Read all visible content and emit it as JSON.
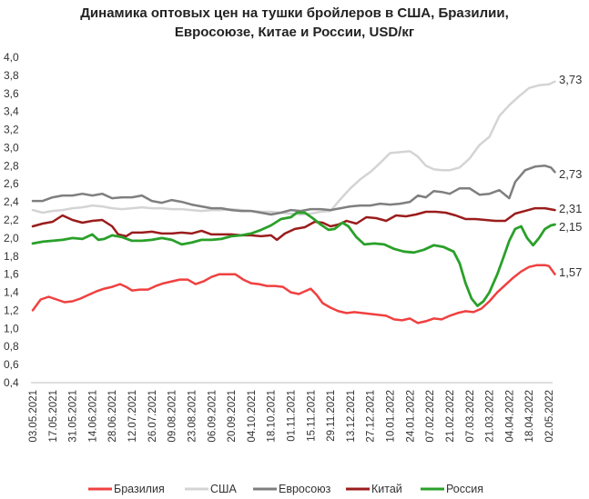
{
  "chart_data": {
    "type": "line",
    "title_line1": "Динамика оптовых цен на тушки бройлеров в США, Бразилии,",
    "title_line2": "Евросоюзе, Китае и России, USD/кг",
    "xlabel": "",
    "ylabel": "",
    "ylim": [
      0.4,
      4.0
    ],
    "yticks": [
      "0,4",
      "0,6",
      "0,8",
      "1,0",
      "1,2",
      "1,4",
      "1,6",
      "1,8",
      "2,0",
      "2,2",
      "2,4",
      "2,6",
      "2,8",
      "3,0",
      "3,2",
      "3,4",
      "3,6",
      "3,8",
      "4,0"
    ],
    "categories": [
      "03.05.2021",
      "17.05.2021",
      "31.05.2021",
      "14.06.2021",
      "28.06.2021",
      "12.07.2021",
      "26.07.2021",
      "09.08.2021",
      "23.08.2021",
      "06.09.2021",
      "20.09.2021",
      "04.10.2021",
      "18.10.2021",
      "01.11.2021",
      "15.11.2021",
      "29.11.2021",
      "13.12.2021",
      "27.12.2021",
      "10.01.2022",
      "24.01.2022",
      "07.02.2022",
      "21.02.2022",
      "07.03.2022",
      "21.03.2022",
      "04.04.2022",
      "18.04.2022",
      "02.05.2022"
    ],
    "grid": false,
    "legend_position": "bottom",
    "series": [
      {
        "name": "Бразилия",
        "color": "#f04040",
        "width": 2.5,
        "end_label": "1,57",
        "points": [
          [
            0,
            1.2
          ],
          [
            0.4,
            1.32
          ],
          [
            0.8,
            1.35
          ],
          [
            1.2,
            1.32
          ],
          [
            1.6,
            1.29
          ],
          [
            2.0,
            1.3
          ],
          [
            2.4,
            1.33
          ],
          [
            2.8,
            1.37
          ],
          [
            3.2,
            1.41
          ],
          [
            3.6,
            1.44
          ],
          [
            4.0,
            1.46
          ],
          [
            4.4,
            1.49
          ],
          [
            4.7,
            1.46
          ],
          [
            5.0,
            1.42
          ],
          [
            5.4,
            1.43
          ],
          [
            5.8,
            1.43
          ],
          [
            6.2,
            1.47
          ],
          [
            6.6,
            1.5
          ],
          [
            7.0,
            1.52
          ],
          [
            7.4,
            1.54
          ],
          [
            7.8,
            1.54
          ],
          [
            8.2,
            1.49
          ],
          [
            8.6,
            1.52
          ],
          [
            9.0,
            1.57
          ],
          [
            9.4,
            1.6
          ],
          [
            9.8,
            1.6
          ],
          [
            10.2,
            1.6
          ],
          [
            10.6,
            1.54
          ],
          [
            11.0,
            1.5
          ],
          [
            11.4,
            1.49
          ],
          [
            11.8,
            1.47
          ],
          [
            12.2,
            1.47
          ],
          [
            12.6,
            1.46
          ],
          [
            13.0,
            1.4
          ],
          [
            13.4,
            1.38
          ],
          [
            13.8,
            1.42
          ],
          [
            14.0,
            1.44
          ],
          [
            14.3,
            1.37
          ],
          [
            14.6,
            1.28
          ],
          [
            15.0,
            1.23
          ],
          [
            15.4,
            1.19
          ],
          [
            15.8,
            1.17
          ],
          [
            16.2,
            1.18
          ],
          [
            16.6,
            1.17
          ],
          [
            17.0,
            1.16
          ],
          [
            17.4,
            1.15
          ],
          [
            17.8,
            1.14
          ],
          [
            18.2,
            1.1
          ],
          [
            18.6,
            1.09
          ],
          [
            19.0,
            1.11
          ],
          [
            19.4,
            1.06
          ],
          [
            19.8,
            1.08
          ],
          [
            20.2,
            1.11
          ],
          [
            20.6,
            1.1
          ],
          [
            21.0,
            1.14
          ],
          [
            21.4,
            1.17
          ],
          [
            21.8,
            1.19
          ],
          [
            22.2,
            1.18
          ],
          [
            22.6,
            1.22
          ],
          [
            23.0,
            1.3
          ],
          [
            23.4,
            1.4
          ],
          [
            23.8,
            1.48
          ],
          [
            24.2,
            1.56
          ],
          [
            24.6,
            1.63
          ],
          [
            25.0,
            1.68
          ],
          [
            25.4,
            1.7
          ],
          [
            25.8,
            1.7
          ],
          [
            26.0,
            1.69
          ],
          [
            26.3,
            1.6
          ]
        ]
      },
      {
        "name": "США",
        "color": "#d4d4d4",
        "width": 2.5,
        "end_label": "3,73",
        "points": [
          [
            0,
            2.31
          ],
          [
            0.5,
            2.28
          ],
          [
            1.0,
            2.3
          ],
          [
            1.5,
            2.31
          ],
          [
            2.0,
            2.33
          ],
          [
            2.5,
            2.34
          ],
          [
            3.0,
            2.36
          ],
          [
            3.5,
            2.35
          ],
          [
            4.0,
            2.33
          ],
          [
            4.5,
            2.32
          ],
          [
            5.0,
            2.33
          ],
          [
            5.5,
            2.34
          ],
          [
            6.0,
            2.33
          ],
          [
            6.5,
            2.33
          ],
          [
            7.0,
            2.32
          ],
          [
            7.5,
            2.32
          ],
          [
            8.0,
            2.31
          ],
          [
            8.5,
            2.3
          ],
          [
            9.0,
            2.31
          ],
          [
            9.5,
            2.31
          ],
          [
            10.0,
            2.32
          ],
          [
            10.5,
            2.31
          ],
          [
            11.0,
            2.3
          ],
          [
            11.5,
            2.29
          ],
          [
            12.0,
            2.29
          ],
          [
            12.5,
            2.28
          ],
          [
            13.0,
            2.27
          ],
          [
            13.5,
            2.26
          ],
          [
            14.0,
            2.27
          ],
          [
            14.5,
            2.29
          ],
          [
            15.0,
            2.3
          ],
          [
            15.5,
            2.43
          ],
          [
            16.0,
            2.55
          ],
          [
            16.5,
            2.65
          ],
          [
            17.0,
            2.73
          ],
          [
            17.5,
            2.83
          ],
          [
            18.0,
            2.94
          ],
          [
            18.5,
            2.95
          ],
          [
            19.0,
            2.96
          ],
          [
            19.4,
            2.9
          ],
          [
            19.8,
            2.8
          ],
          [
            20.2,
            2.76
          ],
          [
            20.6,
            2.75
          ],
          [
            21.0,
            2.75
          ],
          [
            21.5,
            2.78
          ],
          [
            22.0,
            2.88
          ],
          [
            22.5,
            3.03
          ],
          [
            23.0,
            3.12
          ],
          [
            23.5,
            3.35
          ],
          [
            24.0,
            3.47
          ],
          [
            24.5,
            3.57
          ],
          [
            25.0,
            3.66
          ],
          [
            25.5,
            3.69
          ],
          [
            26.0,
            3.7
          ],
          [
            26.3,
            3.73
          ]
        ]
      },
      {
        "name": "Евросоюз",
        "color": "#7f7f7f",
        "width": 2.5,
        "end_label": "2,73",
        "points": [
          [
            0,
            2.41
          ],
          [
            0.5,
            2.41
          ],
          [
            1.0,
            2.45
          ],
          [
            1.5,
            2.47
          ],
          [
            2.0,
            2.47
          ],
          [
            2.5,
            2.49
          ],
          [
            3.0,
            2.47
          ],
          [
            3.5,
            2.49
          ],
          [
            4.0,
            2.44
          ],
          [
            4.5,
            2.45
          ],
          [
            5.0,
            2.45
          ],
          [
            5.5,
            2.47
          ],
          [
            6.0,
            2.41
          ],
          [
            6.5,
            2.39
          ],
          [
            7.0,
            2.42
          ],
          [
            7.5,
            2.4
          ],
          [
            8.0,
            2.37
          ],
          [
            8.5,
            2.35
          ],
          [
            9.0,
            2.33
          ],
          [
            9.5,
            2.33
          ],
          [
            10.0,
            2.31
          ],
          [
            10.5,
            2.3
          ],
          [
            11.0,
            2.3
          ],
          [
            11.5,
            2.28
          ],
          [
            12.0,
            2.26
          ],
          [
            12.5,
            2.28
          ],
          [
            13.0,
            2.31
          ],
          [
            13.5,
            2.3
          ],
          [
            14.0,
            2.32
          ],
          [
            14.5,
            2.32
          ],
          [
            15.0,
            2.31
          ],
          [
            15.5,
            2.33
          ],
          [
            16.0,
            2.35
          ],
          [
            16.5,
            2.36
          ],
          [
            17.0,
            2.36
          ],
          [
            17.5,
            2.38
          ],
          [
            18.0,
            2.37
          ],
          [
            18.5,
            2.38
          ],
          [
            19.0,
            2.4
          ],
          [
            19.4,
            2.47
          ],
          [
            19.8,
            2.45
          ],
          [
            20.2,
            2.52
          ],
          [
            20.6,
            2.51
          ],
          [
            21.0,
            2.49
          ],
          [
            21.5,
            2.55
          ],
          [
            22.0,
            2.55
          ],
          [
            22.5,
            2.48
          ],
          [
            23.0,
            2.49
          ],
          [
            23.5,
            2.53
          ],
          [
            24.0,
            2.44
          ],
          [
            24.3,
            2.62
          ],
          [
            24.8,
            2.75
          ],
          [
            25.3,
            2.79
          ],
          [
            25.8,
            2.8
          ],
          [
            26.1,
            2.78
          ],
          [
            26.3,
            2.73
          ]
        ]
      },
      {
        "name": "Китай",
        "color": "#9b1c1c",
        "width": 2.5,
        "end_label": "2,31",
        "points": [
          [
            0,
            2.13
          ],
          [
            0.5,
            2.16
          ],
          [
            1.0,
            2.18
          ],
          [
            1.5,
            2.25
          ],
          [
            2.0,
            2.2
          ],
          [
            2.5,
            2.17
          ],
          [
            3.0,
            2.19
          ],
          [
            3.5,
            2.2
          ],
          [
            4.0,
            2.13
          ],
          [
            4.3,
            2.04
          ],
          [
            4.7,
            2.02
          ],
          [
            5.0,
            2.06
          ],
          [
            5.5,
            2.06
          ],
          [
            6.0,
            2.07
          ],
          [
            6.5,
            2.05
          ],
          [
            7.0,
            2.05
          ],
          [
            7.5,
            2.06
          ],
          [
            8.0,
            2.05
          ],
          [
            8.5,
            2.08
          ],
          [
            9.0,
            2.04
          ],
          [
            9.5,
            2.04
          ],
          [
            10.0,
            2.04
          ],
          [
            10.5,
            2.03
          ],
          [
            11.0,
            2.03
          ],
          [
            11.5,
            2.02
          ],
          [
            12.0,
            2.03
          ],
          [
            12.3,
            1.98
          ],
          [
            12.7,
            2.05
          ],
          [
            13.2,
            2.1
          ],
          [
            13.7,
            2.12
          ],
          [
            14.2,
            2.18
          ],
          [
            14.6,
            2.17
          ],
          [
            15.0,
            2.13
          ],
          [
            15.4,
            2.15
          ],
          [
            15.8,
            2.19
          ],
          [
            16.3,
            2.16
          ],
          [
            16.8,
            2.23
          ],
          [
            17.3,
            2.22
          ],
          [
            17.8,
            2.19
          ],
          [
            18.3,
            2.25
          ],
          [
            18.8,
            2.24
          ],
          [
            19.3,
            2.26
          ],
          [
            19.8,
            2.29
          ],
          [
            20.3,
            2.29
          ],
          [
            20.8,
            2.28
          ],
          [
            21.3,
            2.25
          ],
          [
            21.8,
            2.21
          ],
          [
            22.3,
            2.21
          ],
          [
            22.8,
            2.2
          ],
          [
            23.3,
            2.19
          ],
          [
            23.8,
            2.19
          ],
          [
            24.3,
            2.27
          ],
          [
            24.8,
            2.3
          ],
          [
            25.3,
            2.33
          ],
          [
            25.8,
            2.33
          ],
          [
            26.3,
            2.31
          ]
        ]
      },
      {
        "name": "Россия",
        "color": "#2aa02a",
        "width": 2.8,
        "end_label": "2,15",
        "points": [
          [
            0,
            1.94
          ],
          [
            0.5,
            1.96
          ],
          [
            1.0,
            1.97
          ],
          [
            1.5,
            1.98
          ],
          [
            2.0,
            2.0
          ],
          [
            2.5,
            1.99
          ],
          [
            3.0,
            2.04
          ],
          [
            3.3,
            1.98
          ],
          [
            3.6,
            1.99
          ],
          [
            4.0,
            2.03
          ],
          [
            4.5,
            2.01
          ],
          [
            5.0,
            1.97
          ],
          [
            5.5,
            1.97
          ],
          [
            6.0,
            1.98
          ],
          [
            6.5,
            2.0
          ],
          [
            7.0,
            1.98
          ],
          [
            7.5,
            1.93
          ],
          [
            8.0,
            1.95
          ],
          [
            8.5,
            1.98
          ],
          [
            9.0,
            1.98
          ],
          [
            9.5,
            1.99
          ],
          [
            10.0,
            2.02
          ],
          [
            10.5,
            2.03
          ],
          [
            11.0,
            2.05
          ],
          [
            11.5,
            2.09
          ],
          [
            12.0,
            2.14
          ],
          [
            12.5,
            2.21
          ],
          [
            13.0,
            2.23
          ],
          [
            13.3,
            2.28
          ],
          [
            13.7,
            2.28
          ],
          [
            14.1,
            2.22
          ],
          [
            14.5,
            2.15
          ],
          [
            14.9,
            2.09
          ],
          [
            15.2,
            2.1
          ],
          [
            15.6,
            2.17
          ],
          [
            15.9,
            2.13
          ],
          [
            16.3,
            2.01
          ],
          [
            16.7,
            1.93
          ],
          [
            17.2,
            1.94
          ],
          [
            17.7,
            1.93
          ],
          [
            18.2,
            1.88
          ],
          [
            18.7,
            1.85
          ],
          [
            19.2,
            1.84
          ],
          [
            19.7,
            1.87
          ],
          [
            20.2,
            1.92
          ],
          [
            20.7,
            1.9
          ],
          [
            21.2,
            1.85
          ],
          [
            21.5,
            1.72
          ],
          [
            21.8,
            1.5
          ],
          [
            22.1,
            1.33
          ],
          [
            22.4,
            1.25
          ],
          [
            22.7,
            1.3
          ],
          [
            23.0,
            1.4
          ],
          [
            23.4,
            1.6
          ],
          [
            23.7,
            1.78
          ],
          [
            24.0,
            1.97
          ],
          [
            24.3,
            2.1
          ],
          [
            24.6,
            2.13
          ],
          [
            24.9,
            2.0
          ],
          [
            25.2,
            1.92
          ],
          [
            25.5,
            2.0
          ],
          [
            25.8,
            2.1
          ],
          [
            26.1,
            2.14
          ],
          [
            26.3,
            2.15
          ]
        ]
      }
    ]
  }
}
